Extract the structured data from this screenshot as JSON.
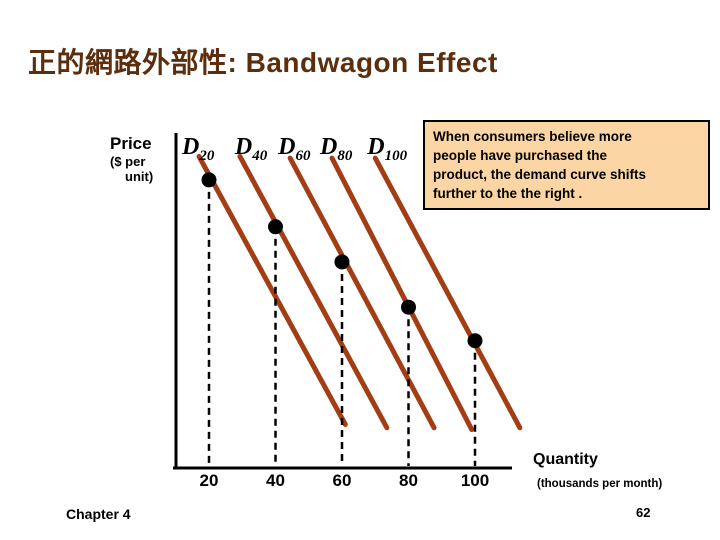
{
  "colors": {
    "title": "#5C2E0E",
    "curve": "#A33D14",
    "axis": "#000000",
    "dot": "#000000",
    "annotation_bg": "#FBD5A3",
    "annotation_border": "#000000"
  },
  "slide": {
    "title": "正的網路外部性: Bandwagon Effect",
    "footer_left": "Chapter 4",
    "page_number": "62"
  },
  "annotation_box": {
    "lines": [
      "When consumers believe more",
      "people have purchased the",
      "product, the demand curve shifts",
      "further to the the right ."
    ]
  },
  "axis_labels": {
    "y_title": "Price",
    "y_sub1": "($ per",
    "y_sub2": "unit)",
    "x_title": "Quantity",
    "x_subtitle": "(thousands per month)"
  },
  "chart_data": {
    "type": "line",
    "xlabel": "Quantity (thousands per month)",
    "ylabel": "Price ($ per unit)",
    "x_ticks": [
      20,
      40,
      60,
      80,
      100
    ],
    "y_ticks": [],
    "grid": false,
    "legend_position": "labels-above-curves",
    "price_scale_note": "price axis unlabeled; p values are fraction of axis height (0=axis, 1=top)",
    "curves": [
      {
        "name": "D20",
        "letter": "D",
        "sub": "20",
        "start": {
          "q": 17,
          "p": 0.93
        },
        "end": {
          "q": 61,
          "p": 0.13
        },
        "dot": {
          "q": 20,
          "p": 0.86
        },
        "label_dx": -17
      },
      {
        "name": "D40",
        "letter": "D",
        "sub": "40",
        "start": {
          "q": 29.3,
          "p": 0.93
        },
        "end": {
          "q": 73.5,
          "p": 0.12
        },
        "dot": {
          "q": 40,
          "p": 0.72
        },
        "label_dx": -5
      },
      {
        "name": "D60",
        "letter": "D",
        "sub": "60",
        "start": {
          "q": 44.4,
          "p": 0.925
        },
        "end": {
          "q": 87.7,
          "p": 0.12
        },
        "dot": {
          "q": 60,
          "p": 0.615
        },
        "label_dx": -12
      },
      {
        "name": "D80",
        "letter": "D",
        "sub": "80",
        "start": {
          "q": 57,
          "p": 0.925
        },
        "end": {
          "q": 99,
          "p": 0.115
        },
        "dot": {
          "q": 80,
          "p": 0.48
        },
        "label_dx": -12
      },
      {
        "name": "D100",
        "letter": "D",
        "sub": "100",
        "start": {
          "q": 70,
          "p": 0.925
        },
        "end": {
          "q": 113.5,
          "p": 0.12
        },
        "dot": {
          "q": 100,
          "p": 0.38
        },
        "label_dx": -8
      }
    ],
    "annotations": "black dot on each curve with dashed dropline to its quantity tick"
  }
}
